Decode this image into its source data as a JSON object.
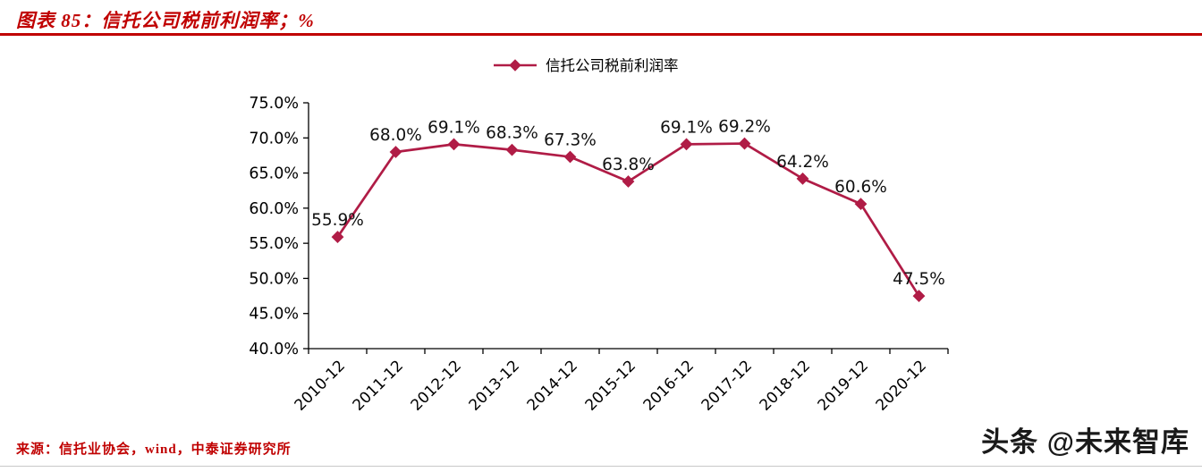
{
  "header": {
    "title": "图表 85：信托公司税前利润率；%"
  },
  "chart_data": {
    "type": "line",
    "title": "图表 85：信托公司税前利润率；%",
    "legend": [
      "信托公司税前利润率"
    ],
    "legend_position": "top",
    "grid": false,
    "categories": [
      "2010-12",
      "2011-12",
      "2012-12",
      "2013-12",
      "2014-12",
      "2015-12",
      "2016-12",
      "2017-12",
      "2018-12",
      "2019-12",
      "2020-12"
    ],
    "series": [
      {
        "name": "信托公司税前利润率",
        "values": [
          55.9,
          68.0,
          69.1,
          68.3,
          67.3,
          63.8,
          69.1,
          69.2,
          64.2,
          60.6,
          47.5
        ]
      }
    ],
    "ylim": [
      40,
      75
    ],
    "ytick_step": 5,
    "ytick_format": "0.0%",
    "xlabel": "",
    "ylabel": "",
    "accent_color": "#b01c46",
    "axis_color": "#000000",
    "label_color": "#111111"
  },
  "footer": {
    "source": "来源：信托业协会，wind，中泰证券研究所"
  },
  "watermark": {
    "text": "头条 @未来智库"
  }
}
